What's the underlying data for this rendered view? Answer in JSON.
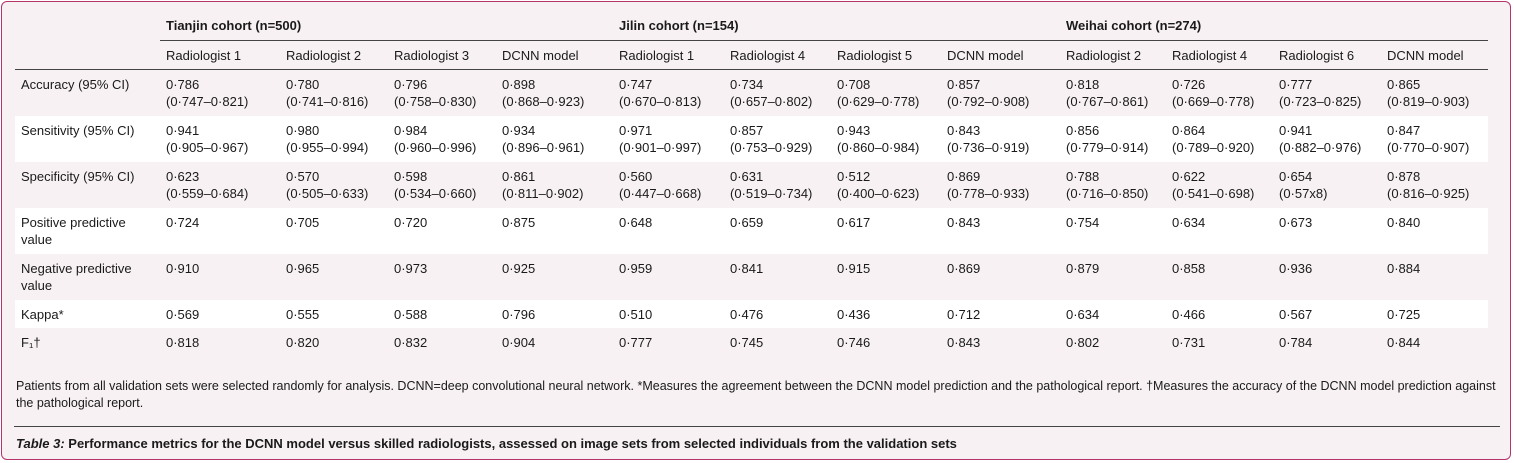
{
  "cohorts": [
    {
      "name": "Tianjin cohort (n=500)",
      "readers": [
        "Radiologist 1",
        "Radiologist 2",
        "Radiologist 3",
        "DCNN model"
      ]
    },
    {
      "name": "Jilin cohort (n=154)",
      "readers": [
        "Radiologist 1",
        "Radiologist 4",
        "Radiologist 5",
        "DCNN model"
      ]
    },
    {
      "name": "Weihai cohort (n=274)",
      "readers": [
        "Radiologist 2",
        "Radiologist 4",
        "Radiologist 6",
        "DCNN model"
      ]
    }
  ],
  "rows": [
    {
      "metric": "Accuracy (95% CI)",
      "values": [
        [
          "0·786",
          "(0·747–0·821)"
        ],
        [
          "0·780",
          "(0·741–0·816)"
        ],
        [
          "0·796",
          "(0·758–0·830)"
        ],
        [
          "0·898",
          "(0·868–0·923)"
        ],
        [
          "0·747",
          "(0·670–0·813)"
        ],
        [
          "0·734",
          "(0·657–0·802)"
        ],
        [
          "0·708",
          "(0·629–0·778)"
        ],
        [
          "0·857",
          "(0·792–0·908)"
        ],
        [
          "0·818",
          "(0·767–0·861)"
        ],
        [
          "0·726",
          "(0·669–0·778)"
        ],
        [
          "0·777",
          "(0·723–0·825)"
        ],
        [
          "0·865",
          "(0·819–0·903)"
        ]
      ]
    },
    {
      "metric": "Sensitivity (95% CI)",
      "values": [
        [
          "0·941",
          "(0·905–0·967)"
        ],
        [
          "0·980",
          "(0·955–0·994)"
        ],
        [
          "0·984",
          "(0·960–0·996)"
        ],
        [
          "0·934",
          "(0·896–0·961)"
        ],
        [
          "0·971",
          "(0·901–0·997)"
        ],
        [
          "0·857",
          "(0·753–0·929)"
        ],
        [
          "0·943",
          "(0·860–0·984)"
        ],
        [
          "0·843",
          "(0·736–0·919)"
        ],
        [
          "0·856",
          "(0·779–0·914)"
        ],
        [
          "0·864",
          "(0·789–0·920)"
        ],
        [
          "0·941",
          "(0·882–0·976)"
        ],
        [
          "0·847",
          "(0·770–0·907)"
        ]
      ]
    },
    {
      "metric": "Specificity (95% CI)",
      "values": [
        [
          "0·623",
          "(0·559–0·684)"
        ],
        [
          "0·570",
          "(0·505–0·633)"
        ],
        [
          "0·598",
          "(0·534–0·660)"
        ],
        [
          "0·861",
          "(0·811–0·902)"
        ],
        [
          "0·560",
          "(0·447–0·668)"
        ],
        [
          "0·631",
          "(0·519–0·734)"
        ],
        [
          "0·512",
          "(0·400–0·623)"
        ],
        [
          "0·869",
          "(0·778–0·933)"
        ],
        [
          "0·788",
          "(0·716–0·850)"
        ],
        [
          "0·622",
          "(0·541–0·698)"
        ],
        [
          "0·654",
          "(0·57x8)"
        ],
        [
          "0·878",
          "(0·816–0·925)"
        ]
      ]
    },
    {
      "metric": "Positive predictive value",
      "values": [
        [
          "0·724"
        ],
        [
          "0·705"
        ],
        [
          "0·720"
        ],
        [
          "0·875"
        ],
        [
          "0·648"
        ],
        [
          "0·659"
        ],
        [
          "0·617"
        ],
        [
          "0·843"
        ],
        [
          "0·754"
        ],
        [
          "0·634"
        ],
        [
          "0·673"
        ],
        [
          "0·840"
        ]
      ]
    },
    {
      "metric": "Negative predictive value",
      "values": [
        [
          "0·910"
        ],
        [
          "0·965"
        ],
        [
          "0·973"
        ],
        [
          "0·925"
        ],
        [
          "0·959"
        ],
        [
          "0·841"
        ],
        [
          "0·915"
        ],
        [
          "0·869"
        ],
        [
          "0·879"
        ],
        [
          "0·858"
        ],
        [
          "0·936"
        ],
        [
          "0·884"
        ]
      ]
    },
    {
      "metric": "Kappa*",
      "values": [
        [
          "0·569"
        ],
        [
          "0·555"
        ],
        [
          "0·588"
        ],
        [
          "0·796"
        ],
        [
          "0·510"
        ],
        [
          "0·476"
        ],
        [
          "0·436"
        ],
        [
          "0·712"
        ],
        [
          "0·634"
        ],
        [
          "0·466"
        ],
        [
          "0·567"
        ],
        [
          "0·725"
        ]
      ]
    },
    {
      "metric": "F₁†",
      "values": [
        [
          "0·818"
        ],
        [
          "0·820"
        ],
        [
          "0·832"
        ],
        [
          "0·904"
        ],
        [
          "0·777"
        ],
        [
          "0·745"
        ],
        [
          "0·746"
        ],
        [
          "0·843"
        ],
        [
          "0·802"
        ],
        [
          "0·731"
        ],
        [
          "0·784"
        ],
        [
          "0·844"
        ]
      ]
    }
  ],
  "footnote": "Patients from all validation sets were selected randomly for analysis. DCNN=deep convolutional neural network. *Measures the agreement between the DCNN model prediction and the pathological report. †Measures the accuracy of the DCNN model prediction against the pathological report.",
  "caption": {
    "label": "Table 3:",
    "text": " Performance metrics for the DCNN model versus skilled radiologists, assessed on image sets from selected individuals from the validation sets"
  },
  "colors": {
    "frame": "#b5336b",
    "background": "#f7f1f4",
    "alt_row": "#ffffff"
  }
}
